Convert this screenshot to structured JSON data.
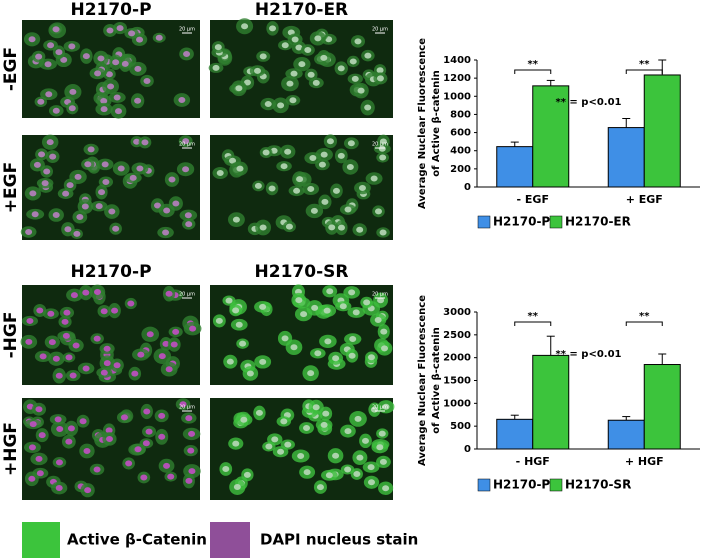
{
  "panels": [
    {
      "columns": [
        "H2170-P",
        "H2170-ER"
      ],
      "rows": [
        "-EGF",
        "+EGF"
      ]
    },
    {
      "columns": [
        "H2170-P",
        "H2170-SR"
      ],
      "rows": [
        "-HGF",
        "+HGF"
      ]
    }
  ],
  "scale_bar": "20 µm",
  "stain_legend": [
    "Active β-Catenin",
    "DAPI nucleus stain"
  ],
  "chart_data": [
    {
      "type": "bar",
      "y_label": [
        "Average Nuclear Fluorescence",
        "of Active β-catenin"
      ],
      "categories": [
        "- EGF",
        "+ EGF"
      ],
      "series": [
        {
          "name": "H2170-P",
          "color": "#3f8fe6",
          "values": [
            445,
            655
          ],
          "errors": [
            50,
            100
          ]
        },
        {
          "name": "H2170-ER",
          "color": "#3cc43c",
          "values": [
            1115,
            1235
          ],
          "errors": [
            60,
            165
          ]
        }
      ],
      "ylim": [
        0,
        1400
      ],
      "yticks": [
        0,
        200,
        400,
        600,
        800,
        1000,
        1200,
        1400
      ],
      "annotations": [
        "**",
        "**",
        "** = p<0.01"
      ]
    },
    {
      "type": "bar",
      "y_label": [
        "Average Nuclear Fluorescence",
        "of Active β-catenin"
      ],
      "categories": [
        "- HGF",
        "+ HGF"
      ],
      "series": [
        {
          "name": "H2170-P",
          "color": "#3f8fe6",
          "values": [
            650,
            630
          ],
          "errors": [
            90,
            80
          ]
        },
        {
          "name": "H2170-SR",
          "color": "#3cc43c",
          "values": [
            2050,
            1850
          ],
          "errors": [
            420,
            230
          ]
        }
      ],
      "ylim": [
        0,
        3000
      ],
      "yticks": [
        0,
        500,
        1000,
        1500,
        2000,
        2500,
        3000
      ],
      "annotations": [
        "**",
        "**",
        "** = p<0.01"
      ]
    }
  ]
}
